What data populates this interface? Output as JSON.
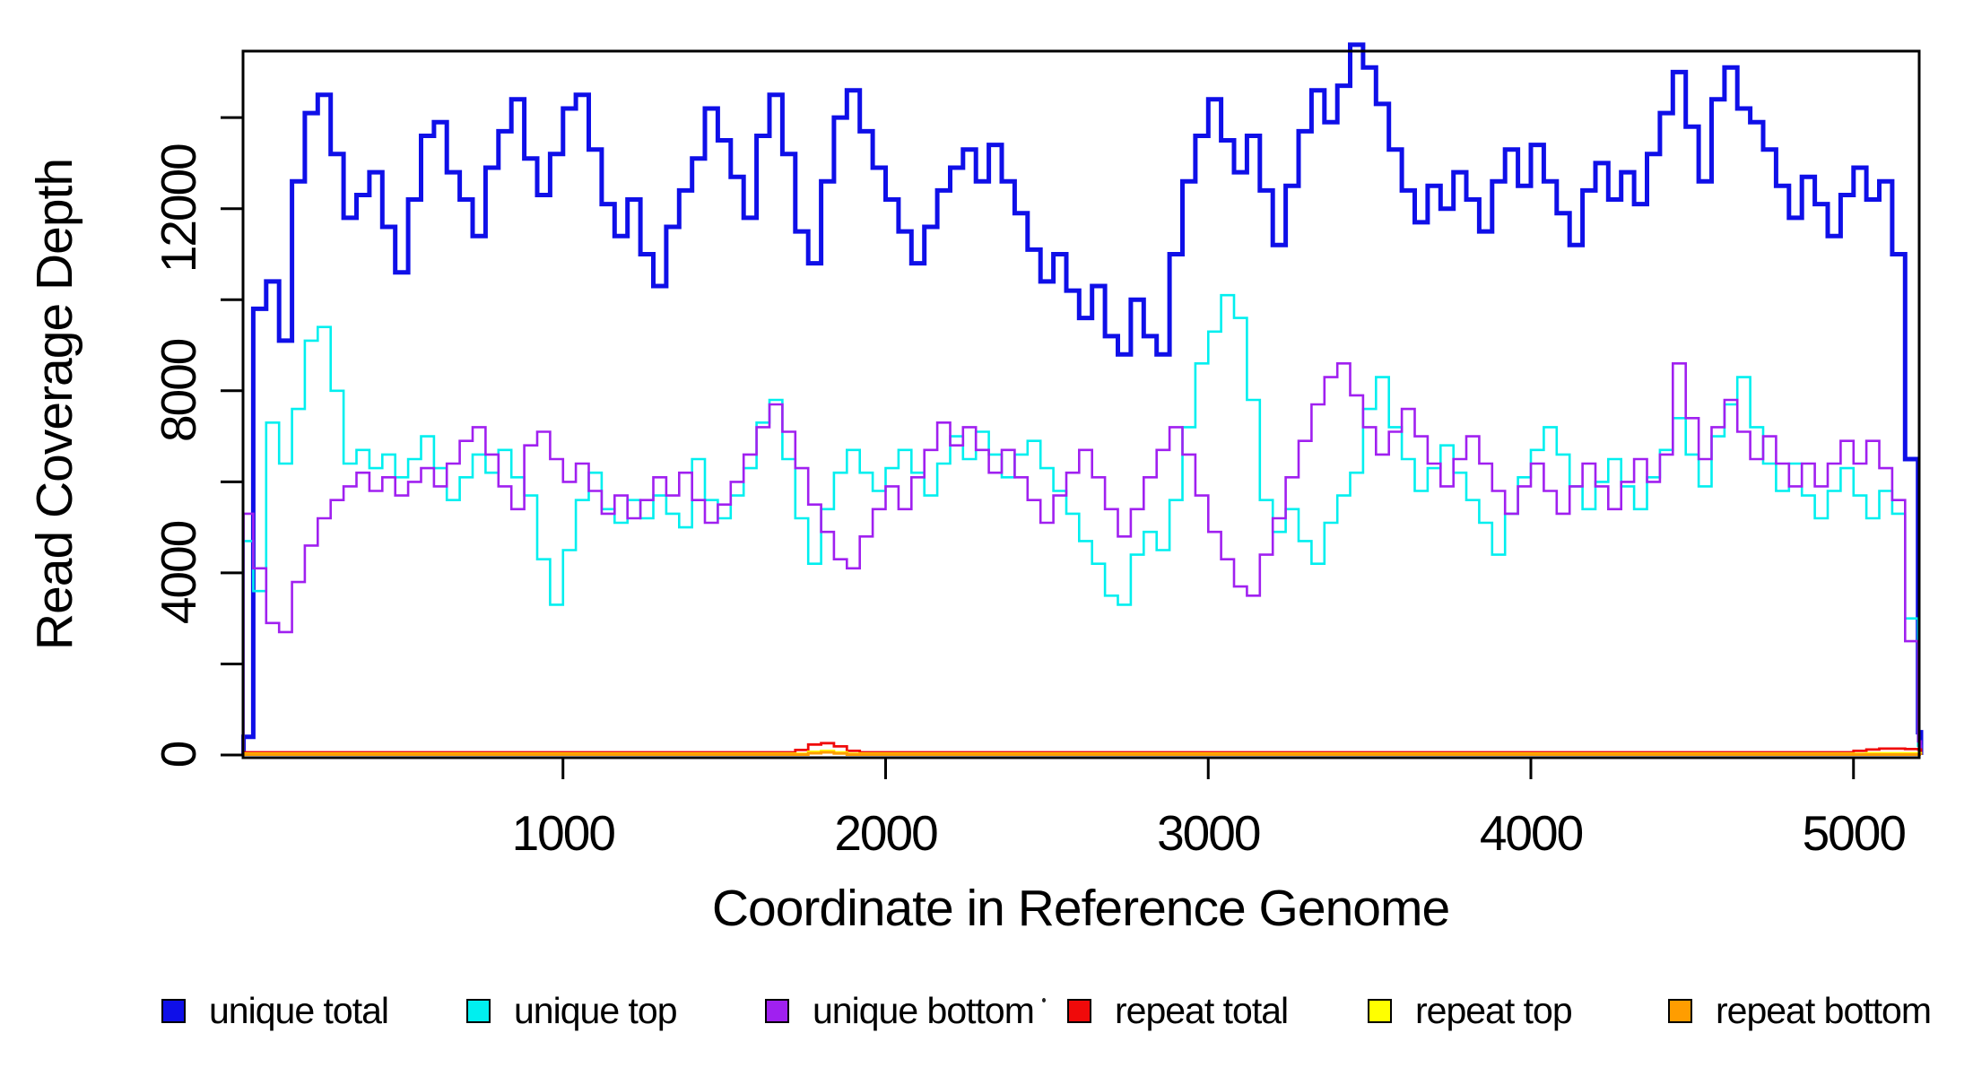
{
  "figure": {
    "x_axis_title": "Coordinate in Reference Genome",
    "y_axis_title": "Read Coverage Depth"
  },
  "axes": {
    "x": {
      "range": [
        0,
        5205
      ],
      "ticks": [
        {
          "value": 1000,
          "label": "1000"
        },
        {
          "value": 2000,
          "label": "2000"
        },
        {
          "value": 3000,
          "label": "3000"
        },
        {
          "value": 4000,
          "label": "4000"
        },
        {
          "value": 5000,
          "label": "5000"
        }
      ]
    },
    "y": {
      "range": [
        0,
        15500
      ],
      "ticks": [
        {
          "value": 0,
          "label": "0"
        },
        {
          "value": 2000,
          "label": ""
        },
        {
          "value": 4000,
          "label": "4000"
        },
        {
          "value": 6000,
          "label": ""
        },
        {
          "value": 8000,
          "label": "8000"
        },
        {
          "value": 10000,
          "label": ""
        },
        {
          "value": 12000,
          "label": "12000"
        },
        {
          "value": 14000,
          "label": ""
        }
      ]
    }
  },
  "legend": {
    "items": [
      {
        "label": "unique total",
        "color": "#0f0fe8"
      },
      {
        "label": "unique top",
        "color": "#00efef"
      },
      {
        "label": "unique bottom",
        "color": "#a020f0"
      },
      {
        "label": "repeat total",
        "color": "#f00a0a"
      },
      {
        "label": "repeat top",
        "color": "#ffff00"
      },
      {
        "label": "repeat bottom",
        "color": "#ff9d00"
      }
    ]
  },
  "chart_data": {
    "type": "line",
    "step": true,
    "grid": false,
    "title": "",
    "xlabel": "Coordinate in Reference Genome",
    "ylabel": "Read Coverage Depth",
    "xlim": [
      0,
      5205
    ],
    "ylim": [
      0,
      15500
    ],
    "legend_position": "bottom",
    "x": [
      10,
      40,
      80,
      120,
      160,
      200,
      240,
      280,
      320,
      360,
      400,
      440,
      480,
      520,
      560,
      600,
      640,
      680,
      720,
      760,
      800,
      840,
      880,
      920,
      960,
      1000,
      1040,
      1080,
      1120,
      1160,
      1200,
      1240,
      1280,
      1320,
      1360,
      1400,
      1440,
      1480,
      1520,
      1560,
      1600,
      1640,
      1680,
      1720,
      1760,
      1800,
      1840,
      1880,
      1920,
      1960,
      2000,
      2040,
      2080,
      2120,
      2160,
      2200,
      2240,
      2280,
      2320,
      2360,
      2400,
      2440,
      2480,
      2520,
      2560,
      2600,
      2640,
      2680,
      2720,
      2760,
      2800,
      2840,
      2880,
      2920,
      2960,
      3000,
      3040,
      3080,
      3120,
      3160,
      3200,
      3240,
      3280,
      3320,
      3360,
      3400,
      3440,
      3480,
      3520,
      3560,
      3600,
      3640,
      3680,
      3720,
      3760,
      3800,
      3840,
      3880,
      3920,
      3960,
      4000,
      4040,
      4080,
      4120,
      4160,
      4200,
      4240,
      4280,
      4320,
      4360,
      4400,
      4440,
      4480,
      4520,
      4560,
      4600,
      4640,
      4680,
      4720,
      4760,
      4800,
      4840,
      4880,
      4920,
      4960,
      5000,
      5040,
      5080,
      5120,
      5160,
      5200
    ],
    "series": [
      {
        "name": "unique total",
        "color": "#0f0fe8",
        "width": 5,
        "values": [
          400,
          9800,
          10400,
          9100,
          12600,
          14100,
          14500,
          13200,
          11800,
          12300,
          12800,
          11600,
          10600,
          12200,
          13600,
          13900,
          12800,
          12200,
          11400,
          12900,
          13700,
          14400,
          13100,
          12300,
          13200,
          14200,
          14500,
          13300,
          12100,
          11400,
          12200,
          11000,
          10300,
          11600,
          12400,
          13100,
          14200,
          13500,
          12700,
          11800,
          13600,
          14500,
          13200,
          11500,
          10800,
          12600,
          14000,
          14600,
          13700,
          12900,
          12200,
          11500,
          10800,
          11600,
          12400,
          12900,
          13300,
          12600,
          13400,
          12600,
          11900,
          11100,
          10400,
          11000,
          10200,
          9600,
          10300,
          9200,
          8800,
          10000,
          9200,
          8800,
          11000,
          12600,
          13600,
          14400,
          13500,
          12800,
          13600,
          12400,
          11200,
          12500,
          13700,
          14600,
          13900,
          14700,
          15600,
          15100,
          14300,
          13300,
          12400,
          11700,
          12500,
          12000,
          12800,
          12200,
          11500,
          12600,
          13300,
          12500,
          13400,
          12600,
          11900,
          11200,
          12400,
          13000,
          12200,
          12800,
          12100,
          13200,
          14100,
          15000,
          13800,
          12600,
          14400,
          15100,
          14200,
          13900,
          13300,
          12500,
          11800,
          12700,
          12100,
          11400,
          12300,
          12900,
          12200,
          12600,
          11000,
          6500,
          500
        ]
      },
      {
        "name": "unique top",
        "color": "#00efef",
        "width": 2.6,
        "values": [
          4700,
          3600,
          7300,
          6400,
          7600,
          9100,
          9400,
          8000,
          6400,
          6700,
          6300,
          6600,
          6100,
          6500,
          7000,
          6300,
          5600,
          6100,
          6600,
          6200,
          6700,
          6100,
          5700,
          4300,
          3300,
          4500,
          5600,
          6200,
          5400,
          5100,
          5600,
          5200,
          5700,
          5300,
          5000,
          6500,
          5600,
          5200,
          5700,
          6300,
          7300,
          7800,
          6500,
          5200,
          4200,
          5400,
          6200,
          6700,
          6200,
          5800,
          6300,
          6700,
          6200,
          5700,
          6400,
          7000,
          6500,
          7100,
          6600,
          6100,
          6600,
          6900,
          6300,
          5800,
          5300,
          4700,
          4200,
          3500,
          3300,
          4400,
          4900,
          4500,
          5600,
          7200,
          8600,
          9300,
          10100,
          9600,
          7800,
          5600,
          4900,
          5400,
          4700,
          4200,
          5100,
          5700,
          6200,
          7600,
          8300,
          7200,
          6500,
          5800,
          6300,
          6800,
          6200,
          5600,
          5100,
          4400,
          5300,
          6100,
          6700,
          7200,
          6600,
          5900,
          5400,
          6000,
          6500,
          5900,
          5400,
          6100,
          6700,
          7400,
          6600,
          5900,
          7000,
          7700,
          8300,
          7200,
          6400,
          5800,
          6400,
          5700,
          5200,
          5800,
          6300,
          5700,
          5200,
          5800,
          5300,
          3000,
          200
        ]
      },
      {
        "name": "unique bottom",
        "color": "#a020f0",
        "width": 2.6,
        "values": [
          5300,
          4100,
          2900,
          2700,
          3800,
          4600,
          5200,
          5600,
          5900,
          6200,
          5800,
          6100,
          5700,
          6000,
          6300,
          5900,
          6400,
          6900,
          7200,
          6600,
          5900,
          5400,
          6800,
          7100,
          6500,
          6000,
          6400,
          5800,
          5300,
          5700,
          5200,
          5600,
          6100,
          5700,
          6200,
          5600,
          5100,
          5500,
          6000,
          6600,
          7200,
          7700,
          7100,
          6300,
          5500,
          4900,
          4300,
          4100,
          4800,
          5400,
          5900,
          5400,
          6100,
          6700,
          7300,
          6800,
          7200,
          6700,
          6200,
          6700,
          6100,
          5600,
          5100,
          5700,
          6200,
          6700,
          6100,
          5400,
          4800,
          5400,
          6100,
          6700,
          7200,
          6600,
          5700,
          4900,
          4300,
          3700,
          3500,
          4400,
          5200,
          6100,
          6900,
          7700,
          8300,
          8600,
          7900,
          7200,
          6600,
          7100,
          7600,
          7000,
          6400,
          5900,
          6500,
          7000,
          6400,
          5800,
          5300,
          5900,
          6400,
          5800,
          5300,
          5900,
          6400,
          5900,
          5400,
          6000,
          6500,
          6000,
          6600,
          8600,
          7400,
          6500,
          7200,
          7800,
          7100,
          6500,
          7000,
          6400,
          5900,
          6400,
          5900,
          6400,
          6900,
          6400,
          6900,
          6300,
          5600,
          2500,
          300
        ]
      },
      {
        "name": "repeat total",
        "color": "#f00a0a",
        "width": 2.8,
        "values": [
          60,
          60,
          60,
          60,
          60,
          60,
          60,
          60,
          60,
          60,
          60,
          60,
          60,
          60,
          60,
          60,
          60,
          60,
          60,
          60,
          60,
          60,
          60,
          60,
          60,
          60,
          60,
          60,
          60,
          60,
          60,
          60,
          60,
          60,
          60,
          60,
          60,
          60,
          60,
          60,
          60,
          60,
          60,
          110,
          230,
          260,
          190,
          90,
          60,
          60,
          60,
          60,
          60,
          60,
          60,
          60,
          60,
          60,
          60,
          60,
          60,
          60,
          60,
          60,
          60,
          60,
          60,
          60,
          60,
          60,
          60,
          60,
          60,
          60,
          60,
          60,
          60,
          60,
          60,
          60,
          60,
          60,
          60,
          60,
          60,
          60,
          60,
          60,
          60,
          60,
          60,
          60,
          60,
          60,
          60,
          60,
          60,
          60,
          60,
          60,
          60,
          60,
          60,
          60,
          60,
          60,
          60,
          60,
          60,
          60,
          60,
          60,
          60,
          60,
          60,
          60,
          60,
          60,
          60,
          60,
          60,
          60,
          60,
          60,
          60,
          90,
          120,
          140,
          140,
          130,
          120
        ]
      },
      {
        "name": "repeat top",
        "color": "#ffff00",
        "width": 2.8,
        "values": [
          25,
          25,
          25,
          25,
          25,
          25,
          25,
          25,
          25,
          25,
          25,
          25,
          25,
          25,
          25,
          25,
          25,
          25,
          25,
          25,
          25,
          25,
          25,
          25,
          25,
          25,
          25,
          25,
          25,
          25,
          25,
          25,
          25,
          25,
          25,
          25,
          25,
          25,
          25,
          25,
          25,
          25,
          25,
          25,
          70,
          90,
          60,
          25,
          25,
          25,
          25,
          25,
          25,
          25,
          25,
          25,
          25,
          25,
          25,
          25,
          25,
          25,
          25,
          25,
          25,
          25,
          25,
          25,
          25,
          25,
          25,
          25,
          25,
          25,
          25,
          25,
          25,
          25,
          25,
          25,
          25,
          25,
          25,
          25,
          25,
          25,
          25,
          25,
          25,
          25,
          25,
          25,
          25,
          25,
          25,
          25,
          25,
          25,
          25,
          25,
          25,
          25,
          25,
          25,
          25,
          25,
          25,
          25,
          25,
          25,
          25,
          25,
          25,
          25,
          25,
          25,
          25,
          25,
          25,
          25,
          25,
          25,
          25,
          25,
          25,
          25,
          40,
          40,
          40,
          40,
          40
        ]
      },
      {
        "name": "repeat bottom",
        "color": "#ff9d00",
        "width": 3,
        "values": [
          10,
          10,
          10,
          10,
          10,
          10,
          10,
          10,
          10,
          10,
          10,
          10,
          10,
          10,
          10,
          10,
          10,
          10,
          10,
          10,
          10,
          10,
          10,
          10,
          10,
          10,
          10,
          10,
          10,
          10,
          10,
          10,
          10,
          10,
          10,
          10,
          10,
          10,
          10,
          10,
          10,
          10,
          10,
          10,
          40,
          60,
          35,
          10,
          10,
          10,
          10,
          10,
          10,
          10,
          10,
          10,
          10,
          10,
          10,
          10,
          10,
          10,
          10,
          10,
          10,
          10,
          10,
          10,
          10,
          10,
          10,
          10,
          10,
          10,
          10,
          10,
          10,
          10,
          10,
          10,
          10,
          10,
          10,
          10,
          10,
          10,
          10,
          10,
          10,
          10,
          10,
          10,
          10,
          10,
          10,
          10,
          10,
          10,
          10,
          10,
          10,
          10,
          10,
          10,
          10,
          10,
          10,
          10,
          10,
          10,
          10,
          10,
          10,
          10,
          10,
          10,
          10,
          10,
          10,
          10,
          10,
          10,
          10,
          10,
          10,
          10,
          10,
          10,
          10,
          10,
          10
        ]
      }
    ]
  }
}
